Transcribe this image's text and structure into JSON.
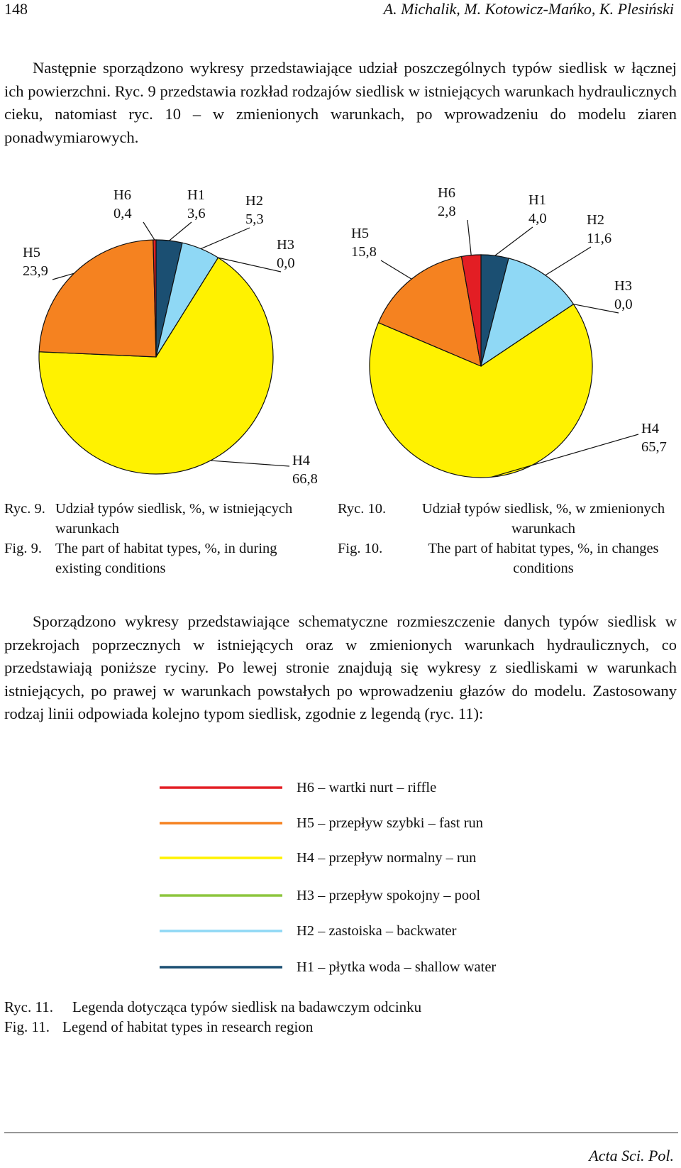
{
  "header": {
    "page_number": "148",
    "authors": "A. Michalik, M. Kotowicz-Mańko, K. Plesiński"
  },
  "paragraphs": [
    "Następnie sporządzono wykresy przedstawiające udział poszczególnych typów siedlisk w łącznej ich powierzchni. Ryc. 9 przedstawia rozkład rodzajów siedlisk w istniejących warunkach hydraulicznych cieku, natomiast ryc. 10 – w zmienionych warunkach, po wprowadzeniu do modelu ziaren ponadwymiarowych.",
    "Sporządzono wykresy przedstawiające schematyczne rozmieszczenie danych typów siedlisk w przekrojach poprzecznych w istniejących oraz w zmienionych warunkach hydraulicznych, co przedstawiają poniższe ryciny. Po lewej stronie znajdują się wykresy z siedliskami w warunkach istniejących, po prawej w warunkach powstałych po wprowadzeniu głazów do modelu. Zastosowany rodzaj linii odpowiada kolejno typom siedlisk, zgodnie z legendą (ryc. 11):"
  ],
  "chart_data": [
    {
      "type": "pie",
      "categories": [
        "H1",
        "H2",
        "H3",
        "H4",
        "H5",
        "H6"
      ],
      "values": [
        3.6,
        5.3,
        0.0,
        66.8,
        23.9,
        0.4
      ],
      "value_labels": [
        "3,6",
        "5,3",
        "0,0",
        "66,8",
        "23,9",
        "0,4"
      ],
      "colors": [
        "#1b4f72",
        "#8fd8f5",
        "#8dc63f",
        "#fff200",
        "#f58220",
        "#e31e24"
      ]
    },
    {
      "type": "pie",
      "categories": [
        "H1",
        "H2",
        "H3",
        "H4",
        "H5",
        "H6"
      ],
      "values": [
        4.0,
        11.6,
        0.0,
        65.7,
        15.8,
        2.8
      ],
      "value_labels": [
        "4,0",
        "11,6",
        "0,0",
        "65,7",
        "15,8",
        "2,8"
      ],
      "colors": [
        "#1b4f72",
        "#8fd8f5",
        "#8dc63f",
        "#fff200",
        "#f58220",
        "#e31e24"
      ]
    }
  ],
  "captions": [
    {
      "pl_label": "Ryc. 9.",
      "pl": "Udział typów siedlisk, %, w istniejących warunkach",
      "en_label": "Fig. 9.",
      "en": "The part of habitat types, %, in during existing conditions"
    },
    {
      "pl_label": "Ryc. 10.",
      "pl": "Udział typów siedlisk, %, w zmienionych warunkach",
      "en_label": "Fig. 10.",
      "en": "The part of habitat types, %, in changes conditions"
    }
  ],
  "legend": {
    "items": [
      {
        "label": "H6 – wartki nurt – riffle",
        "color": "#e31e24"
      },
      {
        "label": "H5 – przepływ szybki – fast run",
        "color": "#f58220"
      },
      {
        "label": "H4 – przepływ normalny – run",
        "color": "#fff200"
      },
      {
        "label": "H3 – przepływ spokojny – pool",
        "color": "#8dc63f"
      },
      {
        "label": "H2 – zastoiska – backwater",
        "color": "#8fd8f5"
      },
      {
        "label": "H1 – płytka woda – shallow water",
        "color": "#1b4f72"
      }
    ],
    "caption": {
      "pl_label": "Ryc. 11.",
      "pl": "Legenda dotycząca typów siedlisk na badawczym odcinku",
      "en_label": "Fig. 11.",
      "en": "Legend of habitat types in research region"
    }
  },
  "footer": "Acta Sci. Pol."
}
